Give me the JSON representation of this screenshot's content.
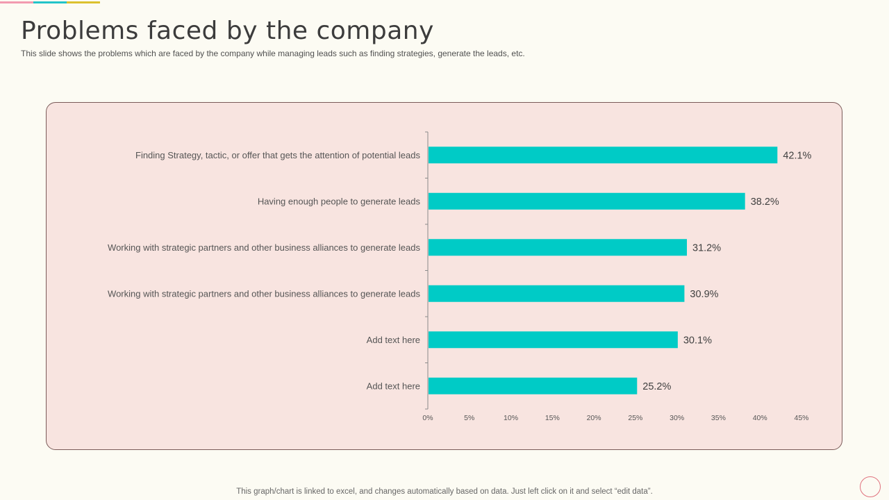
{
  "slide": {
    "title": "Problems faced by the company",
    "subtitle": "This slide shows the problems which are faced by the company while managing leads such as finding strategies, generate the leads, etc.",
    "footer": "This graph/chart is linked to excel,  and changes automatically based on data. Just left click on it and select “edit data”."
  },
  "colors": {
    "bar": "#00cbc6",
    "panel": "#f8e4e0",
    "accent_pink": "#f29ab0",
    "accent_teal": "#22c3c9",
    "accent_yellow": "#dcc12e"
  },
  "chart_data": {
    "type": "bar",
    "orientation": "horizontal",
    "categories": [
      "Finding Strategy, tactic, or offer that gets the attention of potential leads",
      "Having  enough  people  to generate  leads",
      "Working with strategic partners  and  other  business  alliances  to generate  leads",
      "Working with strategic partners  and  other  business  alliances  to generate  leads",
      "Add text here",
      "Add text here"
    ],
    "values": [
      42.1,
      38.2,
      31.2,
      30.9,
      30.1,
      25.2
    ],
    "value_labels": [
      "42.1%",
      "38.2%",
      "31.2%",
      "30.9%",
      "30.1%",
      "25.2%"
    ],
    "x_ticks": [
      0,
      5,
      10,
      15,
      20,
      25,
      30,
      35,
      40,
      45
    ],
    "x_tick_labels": [
      "0%",
      "5%",
      "10%",
      "15%",
      "20%",
      "25%",
      "30%",
      "35%",
      "40%",
      "45%"
    ],
    "xlim": [
      0,
      45
    ],
    "title": "",
    "xlabel": "",
    "ylabel": "",
    "grid": false,
    "legend": "none"
  }
}
